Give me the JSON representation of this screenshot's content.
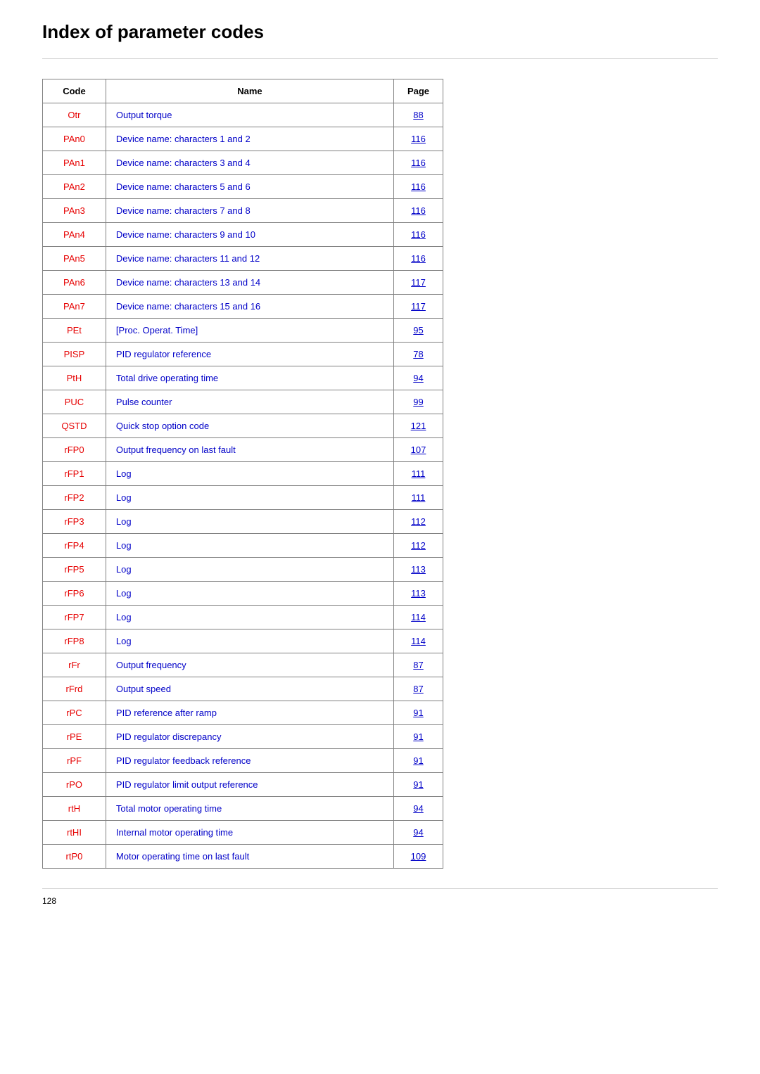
{
  "title": "Index of parameter codes",
  "headers": {
    "code": "Code",
    "name": "Name",
    "page": "Page"
  },
  "page_number": "128",
  "rows": [
    {
      "code": "Otr",
      "name": "Output torque",
      "page": "88"
    },
    {
      "code": "PAn0",
      "name": "Device name: characters 1 and 2",
      "page": "116"
    },
    {
      "code": "PAn1",
      "name": "Device name: characters 3 and 4",
      "page": "116"
    },
    {
      "code": "PAn2",
      "name": "Device name: characters 5 and 6",
      "page": "116"
    },
    {
      "code": "PAn3",
      "name": "Device name: characters 7 and 8",
      "page": "116"
    },
    {
      "code": "PAn4",
      "name": "Device name: characters 9 and 10",
      "page": "116"
    },
    {
      "code": "PAn5",
      "name": "Device name: characters 11 and 12",
      "page": "116"
    },
    {
      "code": "PAn6",
      "name": "Device name: characters 13 and 14",
      "page": "117"
    },
    {
      "code": "PAn7",
      "name": "Device name: characters 15 and 16",
      "page": "117"
    },
    {
      "code": "PEt",
      "name": "[Proc. Operat. Time]",
      "page": "95"
    },
    {
      "code": "PISP",
      "name": "PID regulator reference",
      "page": "78"
    },
    {
      "code": "PtH",
      "name": "Total drive operating time",
      "page": "94"
    },
    {
      "code": "PUC",
      "name": "Pulse counter",
      "page": "99"
    },
    {
      "code": "QSTD",
      "name": "Quick stop option code",
      "page": "121"
    },
    {
      "code": "rFP0",
      "name": "Output frequency on last fault",
      "page": "107"
    },
    {
      "code": "rFP1",
      "name": "Log",
      "page": "111"
    },
    {
      "code": "rFP2",
      "name": "Log",
      "page": "111"
    },
    {
      "code": "rFP3",
      "name": "Log",
      "page": "112"
    },
    {
      "code": "rFP4",
      "name": "Log",
      "page": "112"
    },
    {
      "code": "rFP5",
      "name": "Log",
      "page": "113"
    },
    {
      "code": "rFP6",
      "name": "Log",
      "page": "113"
    },
    {
      "code": "rFP7",
      "name": "Log",
      "page": "114"
    },
    {
      "code": "rFP8",
      "name": "Log",
      "page": "114"
    },
    {
      "code": "rFr",
      "name": "Output frequency",
      "page": "87"
    },
    {
      "code": "rFrd",
      "name": "Output speed",
      "page": "87"
    },
    {
      "code": "rPC",
      "name": "PID reference after ramp",
      "page": "91"
    },
    {
      "code": "rPE",
      "name": "PID regulator discrepancy",
      "page": "91"
    },
    {
      "code": "rPF",
      "name": "PID regulator feedback reference",
      "page": "91"
    },
    {
      "code": "rPO",
      "name": "PID regulator limit output reference",
      "page": "91"
    },
    {
      "code": "rtH",
      "name": "Total motor operating time",
      "page": "94"
    },
    {
      "code": "rtHI",
      "name": "Internal motor operating time",
      "page": "94"
    },
    {
      "code": "rtP0",
      "name": "Motor operating time on last fault",
      "page": "109"
    }
  ]
}
